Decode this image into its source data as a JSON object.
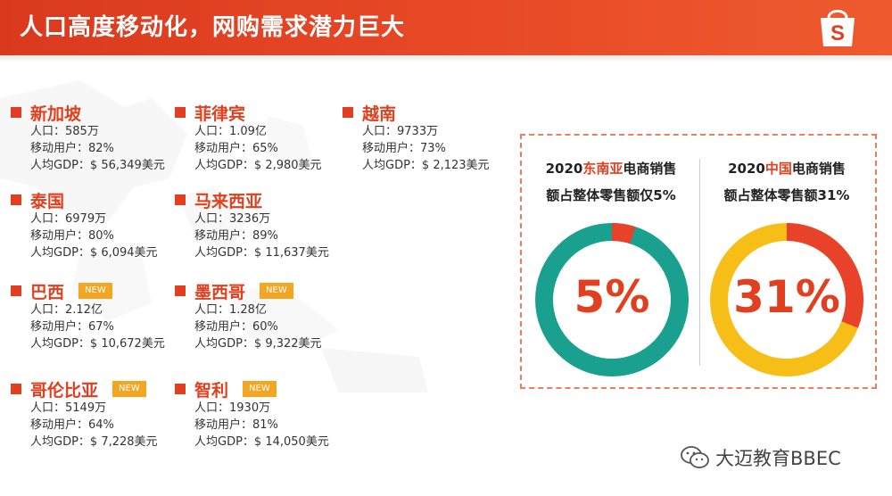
{
  "header": {
    "title": "人口高度移动化，网购需求潜力巨大"
  },
  "logo_letter": "S",
  "countries": [
    {
      "name": "新加坡",
      "new": false,
      "population": "人口：585万",
      "mobile": "移动用户：82%",
      "gdp": "人均GDP：$ 56,349美元"
    },
    {
      "name": "菲律宾",
      "new": false,
      "population": "人口：1.09亿",
      "mobile": "移动用户：65%",
      "gdp": "人均GDP：$ 2,980美元"
    },
    {
      "name": "越南",
      "new": false,
      "population": "人口：9733万",
      "mobile": "移动用户：73%",
      "gdp": "人均GDP：$ 2,123美元"
    },
    {
      "name": "泰国",
      "new": false,
      "population": "人口：6979万",
      "mobile": "移动用户：80%",
      "gdp": "人均GDP：$ 6,094美元"
    },
    {
      "name": "马来西亚",
      "new": false,
      "population": "人口：3236万",
      "mobile": "移动用户：89%",
      "gdp": "人均GDP：$ 11,637美元"
    },
    {
      "name": "巴西",
      "new": true,
      "population": "人口：2.12亿",
      "mobile": "移动用户：67%",
      "gdp": "人均GDP：$ 10,672美元"
    },
    {
      "name": "墨西哥",
      "new": true,
      "population": "人口：1.28亿",
      "mobile": "移动用户：60%",
      "gdp": "人均GDP：$ 9,322美元"
    },
    {
      "name": "哥伦比亚",
      "new": true,
      "population": "人口：5149万",
      "mobile": "移动用户：64%",
      "gdp": "人均GDP：$ 7,228美元"
    },
    {
      "name": "智利",
      "new": true,
      "population": "人口：1930万",
      "mobile": "移动用户：81%",
      "gdp": "人均GDP：$ 14,050美元"
    }
  ],
  "badge_label": "NEW",
  "sea_card": {
    "caption1_pre": "2020",
    "caption1_hl": "东南亚",
    "caption1_post": "电商销售",
    "caption2": "额占整体零售额仅5%",
    "percent_label": "5%",
    "percent": 5,
    "ring_color": "#1aa08f",
    "accent_color": "#e8432a"
  },
  "cn_card": {
    "caption1_pre": "2020",
    "caption1_hl": "中国",
    "caption1_post": "电商销售",
    "caption2": "额占整体零售额31%",
    "percent_label": "31%",
    "percent": 31,
    "ring_color": "#f6be16",
    "accent_color": "#e8432a"
  },
  "watermark": {
    "text": "大迈教育BBEC",
    "icon": "wechat-icon"
  },
  "colors": {
    "header": "#e0401f",
    "accent": "#e0401f",
    "badge": "#f4a623"
  }
}
